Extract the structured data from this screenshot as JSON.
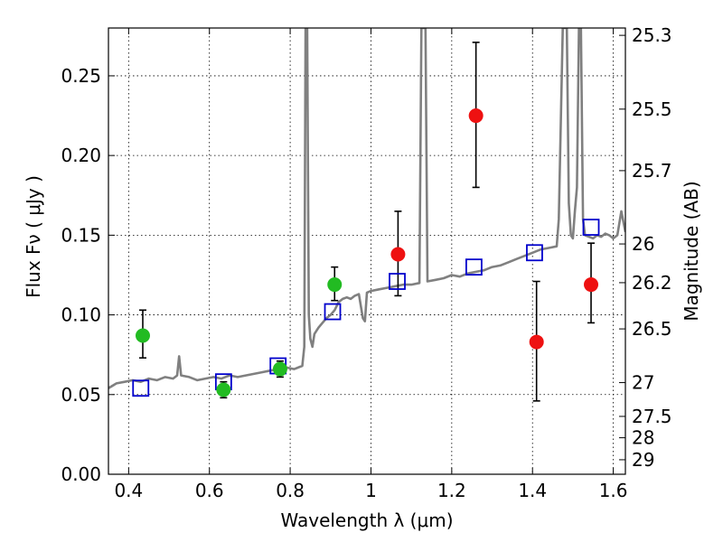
{
  "chart_data": {
    "type": "scatter",
    "title": "",
    "xlabel": "Wavelength  λ (μm)",
    "ylabel": "Flux  Fν  ( μJy )",
    "ylabel_right": "Magnitude (AB)",
    "xlim": [
      0.35,
      1.63
    ],
    "ylim": [
      0,
      0.28
    ],
    "grid": true,
    "grid_style": "dotted",
    "x_ticks": [
      0.4,
      0.6,
      0.8,
      1.0,
      1.2,
      1.4,
      1.6
    ],
    "x_tick_labels": [
      "0.4",
      "0.6",
      "0.8",
      "1",
      "1.2",
      "1.4",
      "1.6"
    ],
    "y_ticks": [
      0.0,
      0.05,
      0.1,
      0.15,
      0.2,
      0.25
    ],
    "y_tick_labels": [
      "0.00",
      "0.05",
      "0.10",
      "0.15",
      "0.20",
      "0.25"
    ],
    "right_ticks": [
      {
        "mag": "25.3",
        "flux": 0.2754
      },
      {
        "mag": "25.5",
        "flux": 0.2291
      },
      {
        "mag": "25.7",
        "flux": 0.1905
      },
      {
        "mag": "26",
        "flux": 0.1445
      },
      {
        "mag": "26.2",
        "flux": 0.1202
      },
      {
        "mag": "26.5",
        "flux": 0.0912
      },
      {
        "mag": "27",
        "flux": 0.0575
      },
      {
        "mag": "27.5",
        "flux": 0.0363
      },
      {
        "mag": "28",
        "flux": 0.0229
      },
      {
        "mag": "29",
        "flux": 0.0091
      }
    ],
    "series": [
      {
        "kind": "line",
        "color": "#808080",
        "points": [
          [
            0.35,
            0.054
          ],
          [
            0.37,
            0.057
          ],
          [
            0.39,
            0.058
          ],
          [
            0.41,
            0.059
          ],
          [
            0.43,
            0.058
          ],
          [
            0.45,
            0.06
          ],
          [
            0.47,
            0.059
          ],
          [
            0.49,
            0.061
          ],
          [
            0.51,
            0.06
          ],
          [
            0.52,
            0.062
          ],
          [
            0.525,
            0.074
          ],
          [
            0.53,
            0.062
          ],
          [
            0.55,
            0.061
          ],
          [
            0.57,
            0.059
          ],
          [
            0.59,
            0.06
          ],
          [
            0.61,
            0.061
          ],
          [
            0.63,
            0.06
          ],
          [
            0.65,
            0.062
          ],
          [
            0.67,
            0.061
          ],
          [
            0.69,
            0.062
          ],
          [
            0.71,
            0.063
          ],
          [
            0.73,
            0.064
          ],
          [
            0.75,
            0.065
          ],
          [
            0.77,
            0.066
          ],
          [
            0.79,
            0.067
          ],
          [
            0.81,
            0.066
          ],
          [
            0.83,
            0.068
          ],
          [
            0.835,
            0.08
          ],
          [
            0.838,
            0.28
          ],
          [
            0.842,
            0.28
          ],
          [
            0.846,
            0.1
          ],
          [
            0.85,
            0.085
          ],
          [
            0.855,
            0.08
          ],
          [
            0.86,
            0.088
          ],
          [
            0.87,
            0.092
          ],
          [
            0.88,
            0.095
          ],
          [
            0.89,
            0.098
          ],
          [
            0.9,
            0.1
          ],
          [
            0.91,
            0.103
          ],
          [
            0.92,
            0.108
          ],
          [
            0.93,
            0.11
          ],
          [
            0.94,
            0.111
          ],
          [
            0.95,
            0.11
          ],
          [
            0.96,
            0.112
          ],
          [
            0.97,
            0.113
          ],
          [
            0.98,
            0.098
          ],
          [
            0.985,
            0.096
          ],
          [
            0.99,
            0.114
          ],
          [
            1.0,
            0.115
          ],
          [
            1.02,
            0.116
          ],
          [
            1.04,
            0.117
          ],
          [
            1.06,
            0.118
          ],
          [
            1.08,
            0.119
          ],
          [
            1.1,
            0.119
          ],
          [
            1.12,
            0.12
          ],
          [
            1.125,
            0.28
          ],
          [
            1.135,
            0.28
          ],
          [
            1.14,
            0.121
          ],
          [
            1.16,
            0.122
          ],
          [
            1.18,
            0.123
          ],
          [
            1.2,
            0.125
          ],
          [
            1.22,
            0.124
          ],
          [
            1.24,
            0.126
          ],
          [
            1.26,
            0.127
          ],
          [
            1.28,
            0.128
          ],
          [
            1.3,
            0.13
          ],
          [
            1.32,
            0.131
          ],
          [
            1.34,
            0.133
          ],
          [
            1.36,
            0.135
          ],
          [
            1.38,
            0.137
          ],
          [
            1.4,
            0.139
          ],
          [
            1.42,
            0.141
          ],
          [
            1.44,
            0.142
          ],
          [
            1.46,
            0.143
          ],
          [
            1.465,
            0.16
          ],
          [
            1.475,
            0.28
          ],
          [
            1.485,
            0.28
          ],
          [
            1.49,
            0.17
          ],
          [
            1.495,
            0.15
          ],
          [
            1.5,
            0.148
          ],
          [
            1.505,
            0.165
          ],
          [
            1.51,
            0.18
          ],
          [
            1.515,
            0.28
          ],
          [
            1.52,
            0.28
          ],
          [
            1.525,
            0.16
          ],
          [
            1.53,
            0.15
          ],
          [
            1.54,
            0.149
          ],
          [
            1.55,
            0.148
          ],
          [
            1.56,
            0.15
          ],
          [
            1.57,
            0.149
          ],
          [
            1.58,
            0.151
          ],
          [
            1.59,
            0.15
          ],
          [
            1.6,
            0.148
          ],
          [
            1.61,
            0.15
          ],
          [
            1.62,
            0.165
          ],
          [
            1.63,
            0.152
          ]
        ]
      },
      {
        "kind": "scatter",
        "marker": "square-open",
        "color": "#0000cc",
        "x": [
          0.43,
          0.635,
          0.77,
          0.905,
          1.065,
          1.255,
          1.405,
          1.545
        ],
        "y": [
          0.054,
          0.058,
          0.068,
          0.102,
          0.121,
          0.13,
          0.139,
          0.155
        ]
      },
      {
        "kind": "scatter",
        "marker": "circle",
        "color": "#22bb22",
        "x": [
          0.435,
          0.635,
          0.775,
          0.91
        ],
        "y": [
          0.087,
          0.053,
          0.066,
          0.119
        ],
        "err_low": [
          0.073,
          0.048,
          0.061,
          0.109
        ],
        "err_high": [
          0.103,
          0.058,
          0.071,
          0.13
        ]
      },
      {
        "kind": "scatter",
        "marker": "circle",
        "color": "#ee1111",
        "x": [
          1.067,
          1.26,
          1.41,
          1.545
        ],
        "y": [
          0.138,
          0.225,
          0.083,
          0.119
        ],
        "err_low": [
          0.112,
          0.18,
          0.046,
          0.095
        ],
        "err_high": [
          0.165,
          0.271,
          0.121,
          0.145
        ]
      }
    ]
  }
}
